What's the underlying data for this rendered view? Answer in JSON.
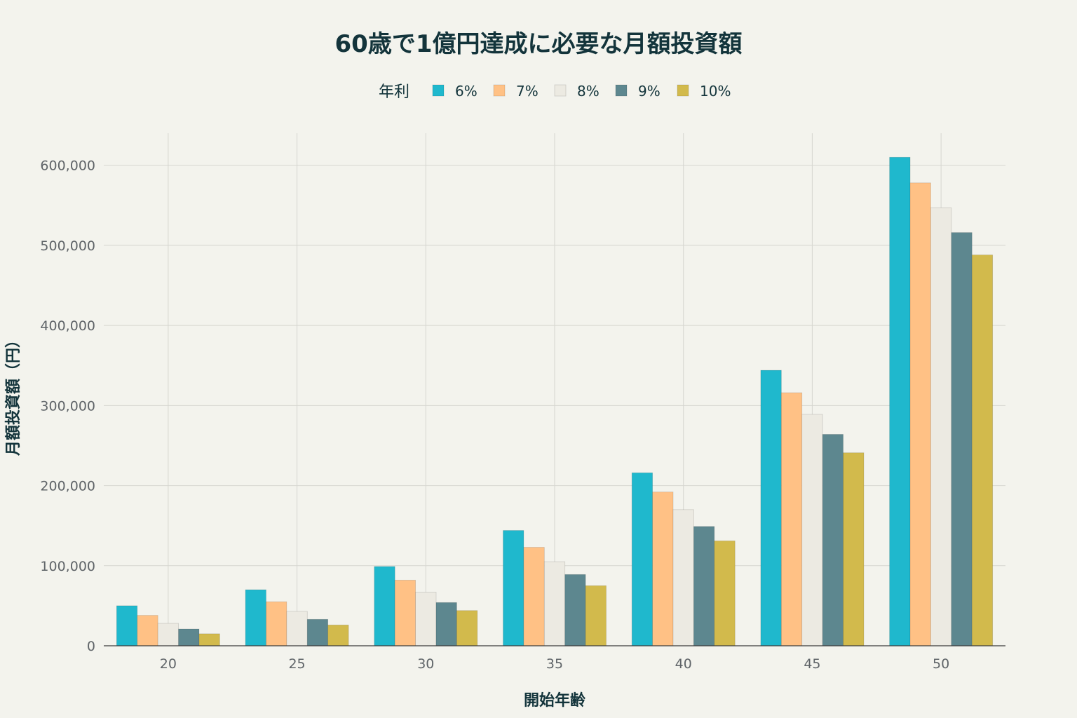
{
  "chart_data": {
    "type": "bar",
    "title": "60歳で1億円達成に必要な月額投資額",
    "xlabel": "開始年齢",
    "ylabel": "月額投資額（円）",
    "legend_title": "年利",
    "legend_position": "top-center",
    "grid": true,
    "categories": [
      "20",
      "25",
      "30",
      "35",
      "40",
      "45",
      "50"
    ],
    "ylim": [
      0,
      640000
    ],
    "y_ticks": [
      0,
      100000,
      200000,
      300000,
      400000,
      500000,
      600000
    ],
    "y_tick_labels": [
      "0",
      "100,000",
      "200,000",
      "300,000",
      "400,000",
      "500,000",
      "600,000"
    ],
    "series": [
      {
        "name": "6%",
        "color": "#1fb8cd",
        "values": [
          50000,
          70000,
          99000,
          144000,
          216000,
          344000,
          610000
        ]
      },
      {
        "name": "7%",
        "color": "#ffc185",
        "values": [
          38000,
          55000,
          82000,
          123000,
          192000,
          316000,
          578000
        ]
      },
      {
        "name": "8%",
        "color": "#eceae2",
        "values": [
          28000,
          43000,
          67000,
          105000,
          170000,
          289000,
          547000
        ]
      },
      {
        "name": "9%",
        "color": "#5d878f",
        "values": [
          21000,
          33000,
          54000,
          89000,
          149000,
          264000,
          516000
        ]
      },
      {
        "name": "10%",
        "color": "#d2ba4c",
        "values": [
          15000,
          26000,
          44000,
          75000,
          131000,
          241000,
          488000
        ]
      }
    ]
  }
}
